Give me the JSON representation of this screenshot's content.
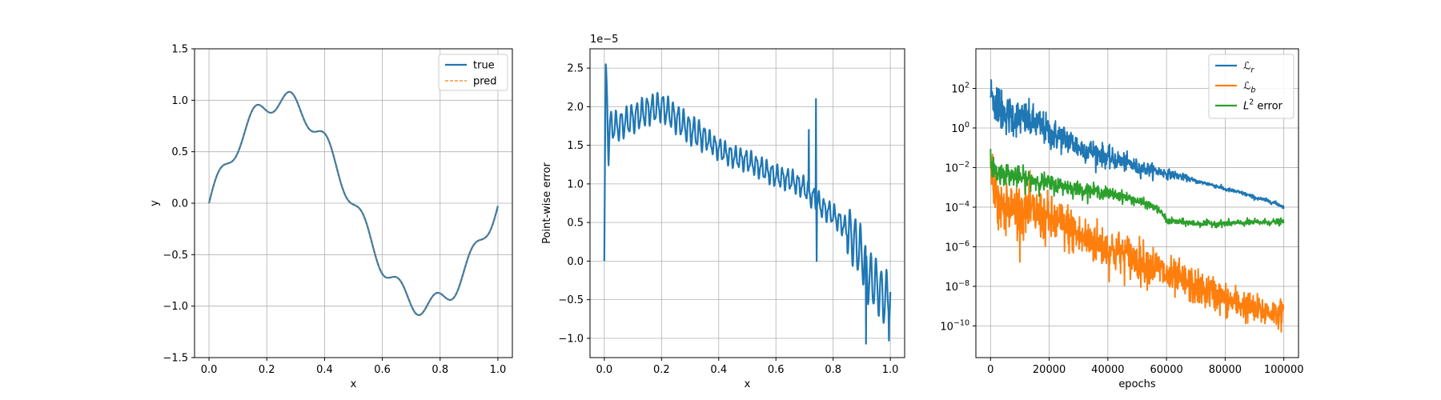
{
  "chart_data": [
    {
      "type": "line",
      "xlabel": "x",
      "ylabel": "y",
      "xlim": [
        -0.05,
        1.05
      ],
      "ylim": [
        -1.5,
        1.5
      ],
      "xticks": [
        0.0,
        0.2,
        0.4,
        0.6,
        0.8,
        1.0
      ],
      "xtick_labels": [
        "0.0",
        "0.2",
        "0.4",
        "0.6",
        "0.8",
        "1.0"
      ],
      "yticks": [
        -1.5,
        -1.0,
        -0.5,
        0.0,
        0.5,
        1.0,
        1.5
      ],
      "ytick_labels": [
        "−1.5",
        "−1.0",
        "−0.5",
        "0.0",
        "0.5",
        "1.0",
        "1.5"
      ],
      "grid": true,
      "legend_position": "top-right",
      "function": "sin(2*pi*x) + 0.1*sin(50*x)",
      "x_domain": [
        0,
        1
      ],
      "series": [
        {
          "name": "true",
          "color": "#1f77b4",
          "style": "solid"
        },
        {
          "name": "pred",
          "color": "#ff7f0e",
          "style": "dashed"
        }
      ]
    },
    {
      "type": "line",
      "xlabel": "x",
      "ylabel": "Point-wise error",
      "offset_text": "1e−5",
      "xlim": [
        -0.05,
        1.05
      ],
      "ylim": [
        -1.25,
        2.75
      ],
      "xticks": [
        0.0,
        0.2,
        0.4,
        0.6,
        0.8,
        1.0
      ],
      "xtick_labels": [
        "0.0",
        "0.2",
        "0.4",
        "0.6",
        "0.8",
        "1.0"
      ],
      "yticks": [
        -1.0,
        -0.5,
        0.0,
        0.5,
        1.0,
        1.5,
        2.0,
        2.5
      ],
      "ytick_labels": [
        "−1.0",
        "−0.5",
        "0.0",
        "0.5",
        "1.0",
        "1.5",
        "2.0",
        "2.5"
      ],
      "grid": true,
      "series": [
        {
          "color": "#1f77b4",
          "x": [
            0.0,
            0.005,
            0.01,
            0.015,
            0.02,
            0.05,
            0.1,
            0.15,
            0.2,
            0.25,
            0.3,
            0.35,
            0.4,
            0.45,
            0.5,
            0.55,
            0.6,
            0.65,
            0.7,
            0.72,
            0.74,
            0.76,
            0.8,
            0.85,
            0.9,
            0.92,
            0.95,
            0.98,
            1.0
          ],
          "y": [
            0.0,
            2.5,
            2.1,
            1.4,
            1.75,
            1.75,
            1.85,
            1.95,
            2.0,
            1.85,
            1.7,
            1.6,
            1.45,
            1.35,
            1.3,
            1.2,
            1.1,
            1.05,
            0.95,
            0.85,
            0.8,
            0.7,
            0.6,
            0.4,
            0.1,
            -0.2,
            -0.3,
            -0.5,
            -0.4
          ],
          "spikes": [
            {
              "x": 0.005,
              "y": 2.55
            },
            {
              "x": 0.715,
              "y": 1.7
            },
            {
              "x": 0.74,
              "y": 2.1
            },
            {
              "x": 0.742,
              "y": 0.0
            },
            {
              "x": 0.915,
              "y": -1.07
            },
            {
              "x": 0.995,
              "y": -1.03
            }
          ]
        }
      ]
    },
    {
      "type": "line",
      "xlabel": "epochs",
      "ylabel": "",
      "yscale": "log",
      "xlim": [
        -5000,
        105000
      ],
      "ylim_log10": [
        -11.6,
        4.0
      ],
      "xticks": [
        0,
        20000,
        40000,
        60000,
        80000,
        100000
      ],
      "xtick_labels": [
        "0",
        "20000",
        "40000",
        "60000",
        "80000",
        "100000"
      ],
      "ytick_exponents": [
        2,
        0,
        -2,
        -4,
        -6,
        -8,
        -10
      ],
      "ytick_labels": [
        "10",
        "10",
        "10",
        "10",
        "10",
        "10",
        "10"
      ],
      "ytick_label_exponents": [
        "2",
        "0",
        "−2",
        "−4",
        "−6",
        "−8",
        "−10"
      ],
      "grid": true,
      "legend_position": "top-right",
      "series": [
        {
          "name": "ℒ",
          "name_sub": "r",
          "color": "#1f77b4",
          "x": [
            0,
            2000,
            5000,
            10000,
            20000,
            30000,
            40000,
            50000,
            60000,
            70000,
            80000,
            90000,
            100000
          ],
          "y": [
            50,
            10,
            5,
            3,
            0.5,
            0.1,
            0.03,
            0.01,
            0.005,
            0.002,
            0.0008,
            0.0003,
            0.0001
          ]
        },
        {
          "name": "ℒ",
          "name_sub": "b",
          "color": "#ff7f0e",
          "x": [
            0,
            2000,
            5000,
            10000,
            20000,
            30000,
            40000,
            50000,
            60000,
            70000,
            80000,
            90000,
            100000
          ],
          "y": [
            0.003,
            0.0003,
            0.0001,
            8e-05,
            2e-05,
            3e-06,
            7e-07,
            2e-07,
            3e-08,
            8e-09,
            2e-09,
            6e-10,
            4e-10
          ]
        },
        {
          "name": "L",
          "name_sup": "2",
          "name_suffix": " error",
          "color": "#2ca02c",
          "x": [
            0,
            2000,
            5000,
            10000,
            20000,
            30000,
            40000,
            50000,
            60000,
            70000,
            80000,
            90000,
            100000
          ],
          "y": [
            0.02,
            0.005,
            0.005,
            0.003,
            0.0015,
            0.0008,
            0.0005,
            0.0002,
            2e-05,
            1.5e-05,
            1.5e-05,
            1.7e-05,
            1.8e-05
          ]
        }
      ]
    }
  ]
}
